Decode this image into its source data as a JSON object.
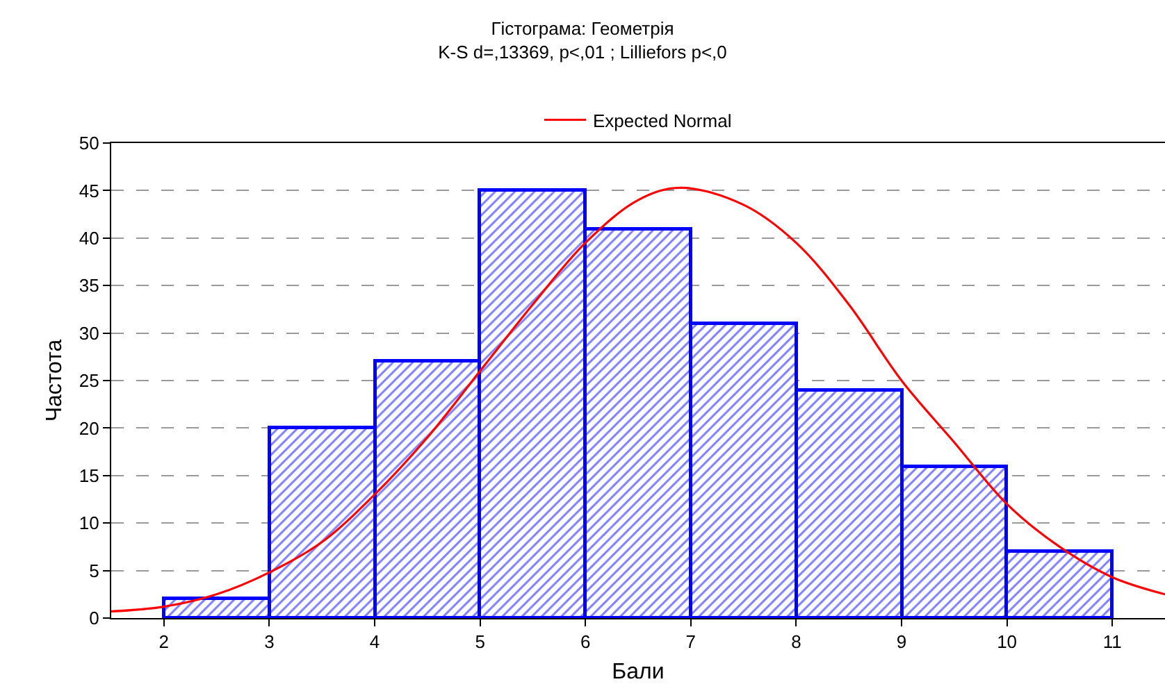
{
  "chart_data": {
    "type": "histogram",
    "title": "Гістограма: Геометрія",
    "subtitle": "K-S d=,13369, p<,01 ; Lilliefors p<,0",
    "xlabel": "Бали",
    "ylabel": "Частота",
    "bins": [
      2,
      3,
      4,
      5,
      6,
      7,
      8,
      9,
      10,
      11
    ],
    "values": [
      2,
      20,
      27,
      45,
      41,
      31,
      24,
      16,
      7
    ],
    "color": "#0000ff",
    "series": [
      {
        "name": "Expected Normal",
        "type": "line",
        "color": "#ff0000",
        "x": [
          1.5,
          2,
          2.5,
          3,
          3.5,
          4,
          4.5,
          5,
          5.5,
          6,
          6.5,
          6.9,
          7.5,
          8,
          8.5,
          9,
          9.5,
          10,
          10.5,
          11,
          11.5
        ],
        "values": [
          0.7,
          1.2,
          2.5,
          4.8,
          8,
          13,
          19,
          26,
          33,
          39.5,
          44,
          45.3,
          43.5,
          39.5,
          33,
          25,
          18.5,
          12,
          7.5,
          4.3,
          2.5
        ]
      }
    ],
    "xlim": [
      1.5,
      11.5
    ],
    "xticks": [
      2,
      3,
      4,
      5,
      6,
      7,
      8,
      9,
      10,
      11
    ],
    "ylim": [
      0,
      50
    ],
    "yticks": [
      0,
      5,
      10,
      15,
      20,
      25,
      30,
      35,
      40,
      45,
      50
    ],
    "grid": "y",
    "legend": "top",
    "line_style": "solid",
    "marker": "none"
  }
}
